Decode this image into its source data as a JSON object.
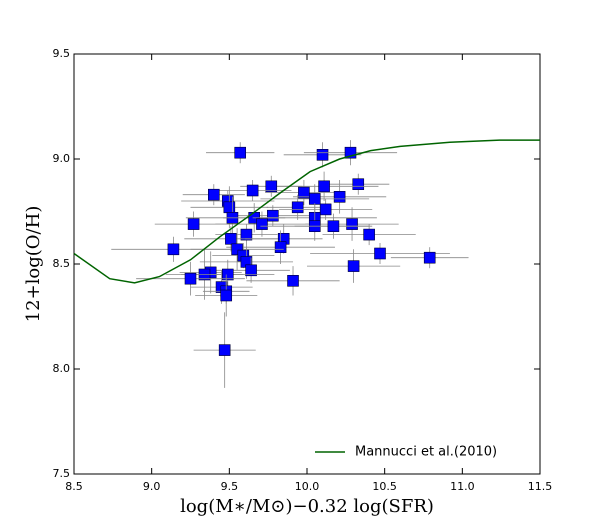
{
  "chart_data": {
    "type": "scatter",
    "xlabel": "log(M∗/M⊙)−0.32 log(SFR)",
    "ylabel": "12+log(O/H)",
    "xlim": [
      8.5,
      11.5
    ],
    "ylim": [
      7.5,
      9.5
    ],
    "xticks": [
      8.5,
      {
        "value": 9.0,
        "label": "9.0"
      },
      9.5,
      {
        "value": 10.0,
        "label": "10.0"
      },
      10.5,
      {
        "value": 11.0,
        "label": "11.0"
      },
      11.5
    ],
    "yticks": [
      7.5,
      {
        "value": 8.0,
        "label": "8.0"
      },
      8.5,
      {
        "value": 9.0,
        "label": "9.0"
      },
      9.5
    ],
    "legend": "lower right",
    "series": [
      {
        "type": "scatter",
        "color": "#0000ff",
        "x": [
          9.57,
          10.1,
          10.28,
          10.33,
          10.11,
          9.77,
          9.65,
          9.4,
          9.98,
          10.21,
          10.05,
          9.49,
          9.5,
          9.94,
          10.12,
          9.78,
          9.52,
          9.66,
          10.05,
          9.71,
          9.27,
          10.29,
          10.05,
          10.17,
          9.61,
          10.4,
          9.51,
          9.85,
          9.83,
          9.14,
          9.55,
          9.59,
          10.47,
          9.61,
          10.79,
          10.3,
          9.64,
          9.38,
          9.34,
          9.49,
          9.25,
          9.91,
          9.45,
          9.48,
          9.48,
          9.47
        ],
        "y": [
          9.03,
          9.02,
          9.03,
          8.88,
          8.87,
          8.87,
          8.85,
          8.83,
          8.84,
          8.82,
          8.81,
          8.8,
          8.77,
          8.77,
          8.76,
          8.73,
          8.72,
          8.72,
          8.72,
          8.69,
          8.69,
          8.69,
          8.68,
          8.68,
          8.64,
          8.64,
          8.62,
          8.62,
          8.58,
          8.57,
          8.57,
          8.54,
          8.55,
          8.51,
          8.53,
          8.49,
          8.47,
          8.46,
          8.45,
          8.45,
          8.43,
          8.42,
          8.39,
          8.37,
          8.35,
          8.09
        ],
        "xerr": [
          0.22,
          0.25,
          0.3,
          0.2,
          0.35,
          0.2,
          0.25,
          0.2,
          0.25,
          0.3,
          0.35,
          0.3,
          0.25,
          0.2,
          0.3,
          0.25,
          0.3,
          0.2,
          0.4,
          0.3,
          0.25,
          0.3,
          0.35,
          0.25,
          0.2,
          0.3,
          0.3,
          0.25,
          0.35,
          0.4,
          0.3,
          0.2,
          0.45,
          0.3,
          0.25,
          0.3,
          0.25,
          0.2,
          0.25,
          0.3,
          0.35,
          0.3,
          0.2,
          0.15,
          0.2,
          0.2
        ],
        "yerr": [
          0.05,
          0.06,
          0.06,
          0.05,
          0.07,
          0.05,
          0.05,
          0.05,
          0.06,
          0.08,
          0.07,
          0.05,
          0.1,
          0.06,
          0.05,
          0.05,
          0.1,
          0.07,
          0.07,
          0.06,
          0.06,
          0.08,
          0.07,
          0.06,
          0.05,
          0.05,
          0.06,
          0.07,
          0.08,
          0.06,
          0.1,
          0.06,
          0.05,
          0.08,
          0.05,
          0.08,
          0.06,
          0.1,
          0.12,
          0.07,
          0.08,
          0.07,
          0.08,
          0.06,
          0.1,
          0.18
        ]
      },
      {
        "type": "line",
        "name": "Mannucci et al.(2010)",
        "color": "#006400",
        "x": [
          8.5,
          8.73,
          8.89,
          9.05,
          9.25,
          9.44,
          9.63,
          9.83,
          10.02,
          10.21,
          10.41,
          10.6,
          10.92,
          11.24,
          11.5
        ],
        "y": [
          8.55,
          8.43,
          8.41,
          8.44,
          8.52,
          8.63,
          8.73,
          8.84,
          8.94,
          9.0,
          9.04,
          9.06,
          9.08,
          9.09,
          9.09
        ]
      }
    ]
  }
}
